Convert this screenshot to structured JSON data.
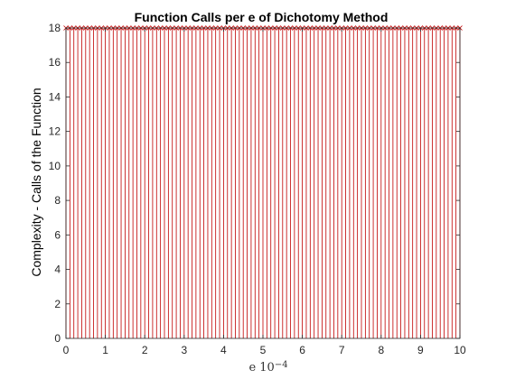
{
  "chart_data": {
    "type": "stem",
    "title": "Function Calls per e of Dichotomy Method",
    "xlabel": "e 10^-4",
    "xlabel_base": "e 10",
    "xlabel_exp": "−4",
    "ylabel": "Complexity - Calls of the Function",
    "xlim": [
      0,
      10
    ],
    "ylim": [
      0,
      18
    ],
    "xticks": [
      0,
      1,
      2,
      3,
      4,
      5,
      6,
      7,
      8,
      9,
      10
    ],
    "yticks": [
      0,
      2,
      4,
      6,
      8,
      10,
      12,
      14,
      16,
      18
    ],
    "grid": false,
    "series": [
      {
        "color": "#c00000",
        "marker": "x",
        "x_start": 0,
        "x_end": 10,
        "x_step": 0.1,
        "value": 18
      }
    ]
  }
}
